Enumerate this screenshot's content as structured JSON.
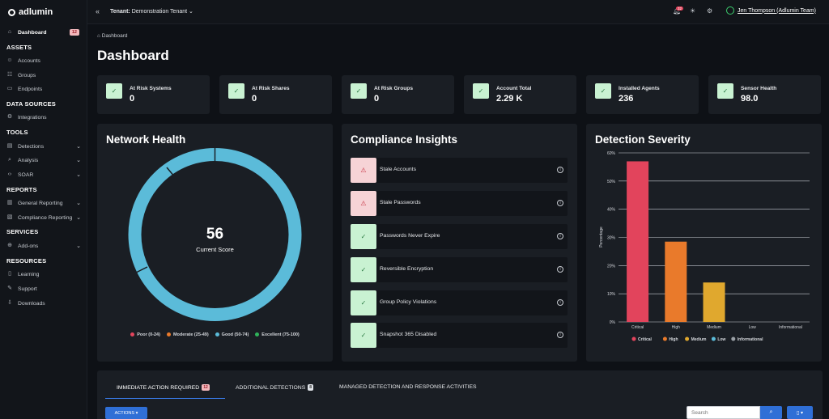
{
  "app": {
    "logo_text": "adlumin"
  },
  "topbar": {
    "tenant_label": "Tenant:",
    "tenant_value": "Demonstration Tenant",
    "notification_count": "32",
    "user_name": "Jen Thompson (Adlumin Team)"
  },
  "sidebar": {
    "dashboard": {
      "label": "Dashboard",
      "badge": "12"
    },
    "sections": [
      "ASSETS",
      "DATA SOURCES",
      "TOOLS",
      "REPORTS",
      "SERVICES",
      "RESOURCES"
    ],
    "items": [
      "Accounts",
      "Groups",
      "Endpoints",
      "Integrations",
      "Detections",
      "Analysis",
      "SOAR",
      "General Reporting",
      "Compliance Reporting",
      "Add-ons",
      "Learning",
      "Support",
      "Downloads"
    ]
  },
  "breadcrumb": "Dashboard",
  "page_title": "Dashboard",
  "stats": [
    {
      "label": "At Risk Systems",
      "value": "0"
    },
    {
      "label": "At Risk Shares",
      "value": "0"
    },
    {
      "label": "At Risk Groups",
      "value": "0"
    },
    {
      "label": "Account Total",
      "value": "2.29 K"
    },
    {
      "label": "Installed Agents",
      "value": "236"
    },
    {
      "label": "Sensor Health",
      "value": "98.0"
    }
  ],
  "network_health": {
    "title": "Network Health",
    "score": "56",
    "score_label": "Current Score",
    "legend": [
      "Poor (0-24)",
      "Moderate (25-49)",
      "Good (50-74)",
      "Excellent (75-100)"
    ],
    "legend_colors": [
      "#e2445c",
      "#e97a2b",
      "#5bbbd9",
      "#2fb35a"
    ]
  },
  "compliance": {
    "title": "Compliance Insights",
    "items": [
      {
        "label": "Stale Accounts",
        "status": "warn"
      },
      {
        "label": "Stale Passwords",
        "status": "warn"
      },
      {
        "label": "Passwords Never Expire",
        "status": "ok"
      },
      {
        "label": "Reversible Encryption",
        "status": "ok"
      },
      {
        "label": "Group Policy Violations",
        "status": "ok"
      },
      {
        "label": "Snapshot 365 Disabled",
        "status": "ok"
      }
    ]
  },
  "chart_data": {
    "type": "bar",
    "title": "Detection Severity",
    "categories": [
      "Critical",
      "High",
      "Medium",
      "Low",
      "Informational"
    ],
    "values": [
      57,
      28.5,
      14,
      0,
      0
    ],
    "colors": [
      "#e2445c",
      "#e97a2b",
      "#e0a82e",
      "#5bbbd9",
      "#9aa0a6"
    ],
    "ylabel": "Percentage",
    "ylim": [
      0,
      60
    ],
    "yticks": [
      "0%",
      "10%",
      "20%",
      "30%",
      "40%",
      "50%",
      "60%"
    ],
    "grid": true,
    "legend_position": "bottom"
  },
  "tabs": [
    {
      "label": "IMMEDIATE ACTION REQUIRED",
      "count": "12"
    },
    {
      "label": "ADDITIONAL DETECTIONS",
      "count": "8"
    },
    {
      "label": "MANAGED DETECTION AND RESPONSE ACTIVITIES"
    }
  ],
  "actions_label": "ACTIONS",
  "search": {
    "placeholder": "Search"
  }
}
